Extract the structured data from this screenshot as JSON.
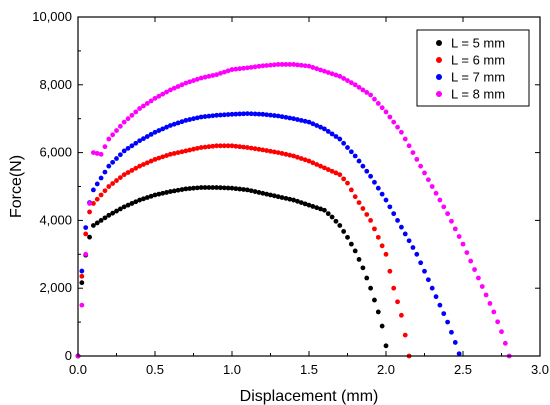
{
  "chart_data": {
    "type": "scatter",
    "title": "",
    "xlabel": "Displacement (mm)",
    "ylabel": "Force(N)",
    "xlim": [
      0.0,
      3.0
    ],
    "ylim": [
      0,
      10000
    ],
    "x_ticks": [
      0.0,
      0.5,
      1.0,
      1.5,
      2.0,
      2.5,
      3.0
    ],
    "x_tick_labels": [
      "0.0",
      "0.5",
      "1.0",
      "1.5",
      "2.0",
      "2.5",
      "3.0"
    ],
    "y_ticks": [
      0,
      2000,
      4000,
      6000,
      8000,
      10000
    ],
    "y_tick_labels": [
      "0",
      "2,000",
      "4,000",
      "6,000",
      "8,000",
      "10,000"
    ],
    "grid": false,
    "legend_position": "top-right",
    "series": [
      {
        "name": "L = 5 mm",
        "color": "#000000",
        "keypoints": [
          [
            0.0,
            0
          ],
          [
            0.02,
            2000
          ],
          [
            0.06,
            3300
          ],
          [
            0.1,
            3850
          ],
          [
            0.2,
            4150
          ],
          [
            0.3,
            4400
          ],
          [
            0.4,
            4600
          ],
          [
            0.5,
            4750
          ],
          [
            0.6,
            4850
          ],
          [
            0.7,
            4930
          ],
          [
            0.8,
            4970
          ],
          [
            0.9,
            4970
          ],
          [
            1.0,
            4950
          ],
          [
            1.1,
            4900
          ],
          [
            1.2,
            4800
          ],
          [
            1.3,
            4700
          ],
          [
            1.4,
            4600
          ],
          [
            1.5,
            4450
          ],
          [
            1.6,
            4300
          ],
          [
            1.65,
            4100
          ],
          [
            1.7,
            3850
          ],
          [
            1.75,
            3500
          ],
          [
            1.8,
            3100
          ],
          [
            1.85,
            2600
          ],
          [
            1.9,
            2000
          ],
          [
            1.95,
            1300
          ],
          [
            1.98,
            800
          ],
          [
            2.0,
            300
          ],
          [
            2.01,
            0
          ]
        ]
      },
      {
        "name": "L = 6 mm",
        "color": "#ff0000",
        "keypoints": [
          [
            0.0,
            0
          ],
          [
            0.02,
            2100
          ],
          [
            0.06,
            4100
          ],
          [
            0.1,
            4500
          ],
          [
            0.2,
            5000
          ],
          [
            0.3,
            5350
          ],
          [
            0.4,
            5600
          ],
          [
            0.5,
            5800
          ],
          [
            0.6,
            5950
          ],
          [
            0.7,
            6050
          ],
          [
            0.8,
            6150
          ],
          [
            0.9,
            6200
          ],
          [
            1.0,
            6200
          ],
          [
            1.1,
            6150
          ],
          [
            1.2,
            6080
          ],
          [
            1.3,
            6000
          ],
          [
            1.4,
            5900
          ],
          [
            1.5,
            5750
          ],
          [
            1.6,
            5550
          ],
          [
            1.7,
            5350
          ],
          [
            1.75,
            5100
          ],
          [
            1.8,
            4700
          ],
          [
            1.9,
            4000
          ],
          [
            2.0,
            3000
          ],
          [
            2.05,
            2000
          ],
          [
            2.1,
            1200
          ],
          [
            2.13,
            500
          ],
          [
            2.15,
            0
          ]
        ]
      },
      {
        "name": "L = 7 mm",
        "color": "#0000ff",
        "keypoints": [
          [
            0.0,
            0
          ],
          [
            0.02,
            2250
          ],
          [
            0.06,
            4300
          ],
          [
            0.1,
            4900
          ],
          [
            0.2,
            5600
          ],
          [
            0.3,
            6050
          ],
          [
            0.4,
            6350
          ],
          [
            0.5,
            6600
          ],
          [
            0.6,
            6800
          ],
          [
            0.7,
            6950
          ],
          [
            0.8,
            7050
          ],
          [
            0.9,
            7100
          ],
          [
            1.0,
            7130
          ],
          [
            1.1,
            7150
          ],
          [
            1.2,
            7130
          ],
          [
            1.3,
            7080
          ],
          [
            1.4,
            7000
          ],
          [
            1.5,
            6900
          ],
          [
            1.6,
            6700
          ],
          [
            1.7,
            6400
          ],
          [
            1.8,
            5900
          ],
          [
            1.9,
            5300
          ],
          [
            2.0,
            4600
          ],
          [
            2.1,
            3800
          ],
          [
            2.2,
            3000
          ],
          [
            2.3,
            2000
          ],
          [
            2.4,
            1000
          ],
          [
            2.45,
            400
          ],
          [
            2.48,
            0
          ]
        ]
      },
      {
        "name": "L = 8 mm",
        "color": "#ff00ff",
        "keypoints": [
          [
            0.0,
            0
          ],
          [
            0.1,
            6000
          ],
          [
            0.15,
            5950
          ],
          [
            0.2,
            6400
          ],
          [
            0.3,
            6900
          ],
          [
            0.4,
            7300
          ],
          [
            0.5,
            7600
          ],
          [
            0.6,
            7850
          ],
          [
            0.7,
            8050
          ],
          [
            0.8,
            8200
          ],
          [
            0.9,
            8300
          ],
          [
            1.0,
            8450
          ],
          [
            1.1,
            8500
          ],
          [
            1.2,
            8560
          ],
          [
            1.3,
            8600
          ],
          [
            1.4,
            8600
          ],
          [
            1.5,
            8550
          ],
          [
            1.6,
            8400
          ],
          [
            1.7,
            8250
          ],
          [
            1.8,
            8000
          ],
          [
            1.9,
            7700
          ],
          [
            2.0,
            7200
          ],
          [
            2.1,
            6600
          ],
          [
            2.2,
            5800
          ],
          [
            2.3,
            5000
          ],
          [
            2.4,
            4200
          ],
          [
            2.5,
            3300
          ],
          [
            2.6,
            2300
          ],
          [
            2.7,
            1300
          ],
          [
            2.76,
            600
          ],
          [
            2.8,
            0
          ]
        ]
      }
    ]
  }
}
